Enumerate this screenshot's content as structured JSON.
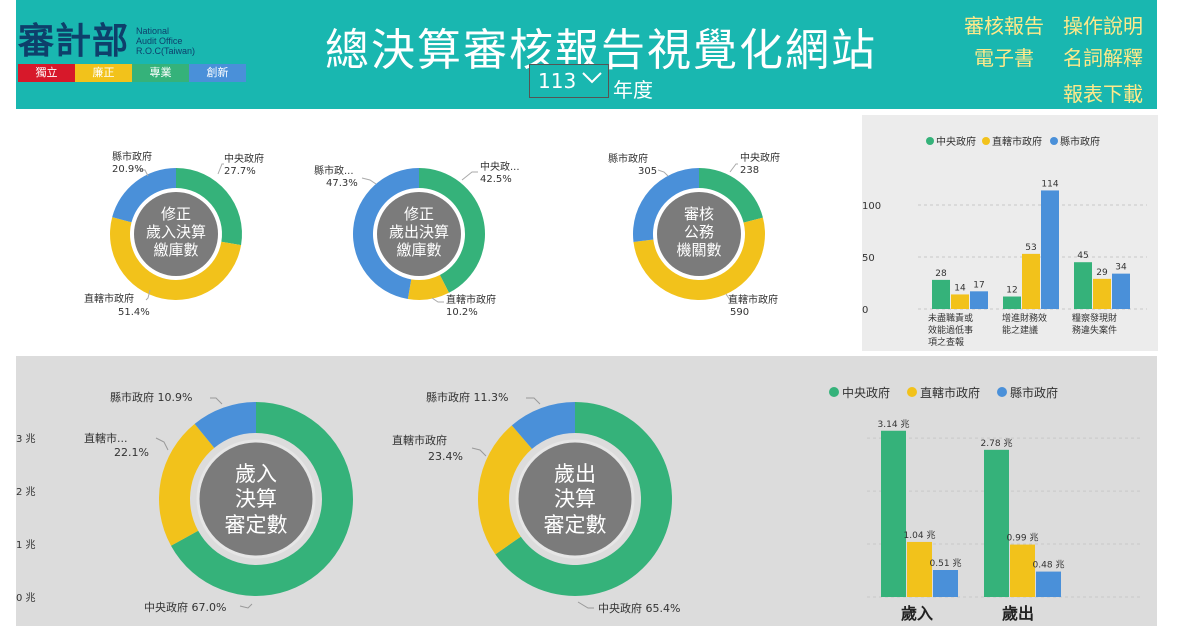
{
  "header": {
    "logo": "審計部",
    "logo_sub": [
      "National",
      "Audit Office",
      "R.O.C(Taiwan)"
    ],
    "values": [
      {
        "label": "獨立",
        "color": "#d7182a"
      },
      {
        "label": "廉正",
        "color": "#f2c21b"
      },
      {
        "label": "專業",
        "color": "#35b27a"
      },
      {
        "label": "創新",
        "color": "#4a90d9"
      }
    ],
    "title": "總決算審核報告視覺化網站",
    "year_value": "113",
    "year_label": "年度",
    "nav": {
      "audit_ebook_1": "審核報告",
      "audit_ebook_2": "電子書",
      "manual": "操作說明",
      "glossary": "名詞解釋",
      "download": "報表下載"
    }
  },
  "colors": {
    "central": "#35b27a",
    "municipal": "#f2c21b",
    "county": "#4a90d9",
    "header": "#19b7b0"
  },
  "donuts_top": [
    {
      "center": [
        "修正",
        "歲入決算",
        "繳庫數"
      ],
      "labels": {
        "county": [
          "縣市政府",
          "20.9%"
        ],
        "central": [
          "中央政府",
          "27.7%"
        ],
        "municipal": [
          "直轄市政府",
          "51.4%"
        ]
      }
    },
    {
      "center": [
        "修正",
        "歲出決算",
        "繳庫數"
      ],
      "labels": {
        "county": [
          "縣市政...",
          "47.3%"
        ],
        "central": [
          "中央政...",
          "42.5%"
        ],
        "municipal": [
          "直轄市政府",
          "10.2%"
        ]
      }
    },
    {
      "center": [
        "審核",
        "公務",
        "機關數"
      ],
      "labels": {
        "county": [
          "縣市政府",
          "305"
        ],
        "central": [
          "中央政府",
          "238"
        ],
        "municipal": [
          "直轄市政府",
          "590"
        ]
      }
    }
  ],
  "donuts_bottom": [
    {
      "center": [
        "歲入",
        "決算",
        "審定數"
      ],
      "labels": {
        "county": "縣市政府 10.9%",
        "municipal": [
          "直轄市...",
          "22.1%"
        ],
        "central": "中央政府 67.0%"
      }
    },
    {
      "center": [
        "歲出",
        "決算",
        "審定數"
      ],
      "labels": {
        "county": "縣市政府 11.3%",
        "municipal": [
          "直轄市政府",
          "23.4%"
        ],
        "central": "中央政府 65.4%"
      }
    }
  ],
  "chart_data": [
    {
      "type": "pie",
      "title": "修正歲入決算繳庫數",
      "categories": [
        "中央政府",
        "直轄市政府",
        "縣市政府"
      ],
      "values": [
        27.7,
        51.4,
        20.9
      ]
    },
    {
      "type": "pie",
      "title": "修正歲出決算繳庫數",
      "categories": [
        "中央政府",
        "直轄市政府",
        "縣市政府"
      ],
      "values": [
        42.5,
        10.2,
        47.3
      ]
    },
    {
      "type": "pie",
      "title": "審核公務機關數",
      "categories": [
        "中央政府",
        "直轄市政府",
        "縣市政府"
      ],
      "values": [
        238,
        590,
        305
      ]
    },
    {
      "type": "bar",
      "legend": [
        "中央政府",
        "直轄市政府",
        "縣市政府"
      ],
      "categories": [
        [
          "未盡職責或",
          "效能過低事",
          "項之查報"
        ],
        [
          "增進財務效",
          "能之建議"
        ],
        [
          "糧察發現財",
          "務違失案件"
        ]
      ],
      "series": [
        {
          "name": "中央政府",
          "values": [
            28,
            12,
            45
          ]
        },
        {
          "name": "直轄市政府",
          "values": [
            14,
            53,
            29
          ]
        },
        {
          "name": "縣市政府",
          "values": [
            17,
            114,
            34
          ]
        }
      ],
      "ylim": [
        0,
        125
      ],
      "yticks": [
        "0",
        "50",
        "100"
      ],
      "yticks_values": [
        0,
        50,
        100
      ]
    },
    {
      "type": "pie",
      "title": "歲入決算審定數",
      "categories": [
        "中央政府",
        "直轄市政府",
        "縣市政府"
      ],
      "values": [
        67.0,
        22.1,
        10.9
      ]
    },
    {
      "type": "pie",
      "title": "歲出決算審定數",
      "categories": [
        "中央政府",
        "直轄市政府",
        "縣市政府"
      ],
      "values": [
        65.4,
        23.4,
        11.3
      ]
    },
    {
      "type": "bar",
      "legend": [
        "中央政府",
        "直轄市政府",
        "縣市政府"
      ],
      "categories": [
        "歲入",
        "歲出"
      ],
      "series": [
        {
          "name": "中央政府",
          "values": [
            3.14,
            2.78
          ],
          "labels": [
            "3.14 兆",
            "2.78 兆"
          ]
        },
        {
          "name": "直轄市政府",
          "values": [
            1.04,
            0.99
          ],
          "labels": [
            "1.04 兆",
            "0.99 兆"
          ]
        },
        {
          "name": "縣市政府",
          "values": [
            0.51,
            0.48
          ],
          "labels": [
            "0.51 兆",
            "0.48 兆"
          ]
        }
      ],
      "ylim": [
        0,
        3.4
      ],
      "yticks": [
        "0 兆",
        "1 兆",
        "2 兆",
        "3 兆"
      ],
      "yticks_values": [
        0,
        1,
        2,
        3
      ]
    }
  ]
}
